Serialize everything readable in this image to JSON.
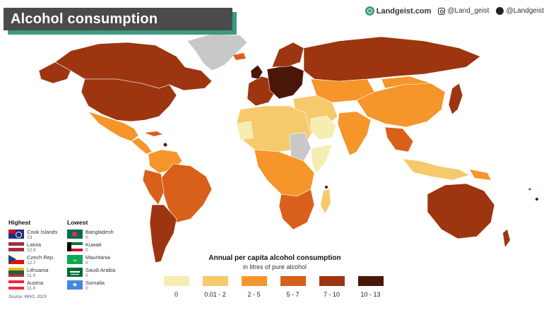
{
  "header": {
    "title": "Alcohol consumption"
  },
  "credits": {
    "site": "Landgeist.com",
    "instagram": "@Land_geist",
    "twitter": "@Landgeist"
  },
  "map": {
    "ocean": "#ffffff",
    "no_data": "#c8c8c8"
  },
  "legend": {
    "title": "Annual per capita alcohol consumption",
    "subtitle": "in litres of pure alcohol",
    "items": [
      {
        "label": "0",
        "color": "#f5edb2"
      },
      {
        "label": "0.01 - 2",
        "color": "#f7c96d"
      },
      {
        "label": "2 - 5",
        "color": "#f5952a"
      },
      {
        "label": "5 - 7",
        "color": "#d9601a"
      },
      {
        "label": "7 - 10",
        "color": "#9c3510"
      },
      {
        "label": "10 - 13",
        "color": "#4a1608"
      }
    ]
  },
  "highest": {
    "title": "Highest",
    "items": [
      {
        "name": "Cook Islands",
        "value": "13"
      },
      {
        "name": "Latvia",
        "value": "12.9"
      },
      {
        "name": "Czech Rep.",
        "value": "12.7"
      },
      {
        "name": "Lithuania",
        "value": "11.9"
      },
      {
        "name": "Austria",
        "value": "11.9"
      }
    ]
  },
  "lowest": {
    "title": "Lowest",
    "items": [
      {
        "name": "Bangladesh",
        "value": "0"
      },
      {
        "name": "Kuwait",
        "value": "0"
      },
      {
        "name": "Mauritania",
        "value": "0"
      },
      {
        "name": "Saudi Arabia",
        "value": "0"
      },
      {
        "name": "Somalia",
        "value": "0"
      }
    ]
  },
  "source": "Source: WHO, 2019"
}
